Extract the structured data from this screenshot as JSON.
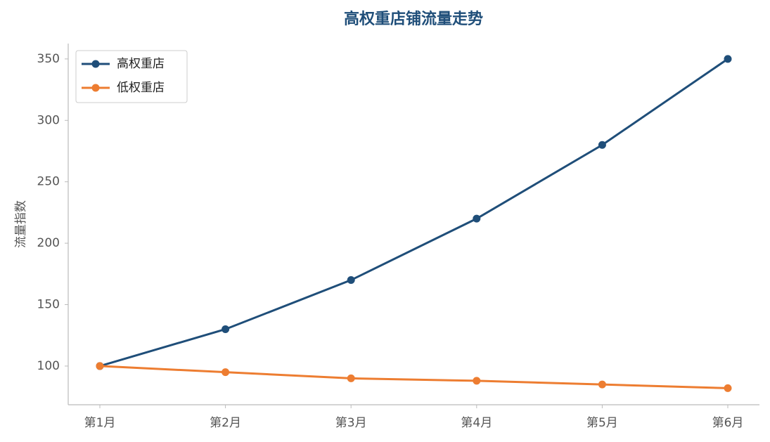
{
  "chart_data": {
    "type": "line",
    "title": "高权重店铺流量走势",
    "y_label": "流量指数",
    "categories": [
      "第1月",
      "第2月",
      "第3月",
      "第4月",
      "第5月",
      "第6月"
    ],
    "series": [
      {
        "name": "高权重店",
        "color": "#1f4e79",
        "values": [
          100,
          130,
          170,
          220,
          280,
          350
        ]
      },
      {
        "name": "低权重店",
        "color": "#ed7d31",
        "values": [
          100,
          95,
          90,
          88,
          85,
          82
        ]
      }
    ],
    "ylim": [
      68.5,
      362.5
    ],
    "yticks": [
      100,
      150,
      200,
      250,
      300,
      350
    ],
    "grid": false,
    "legend": "upper-left"
  }
}
